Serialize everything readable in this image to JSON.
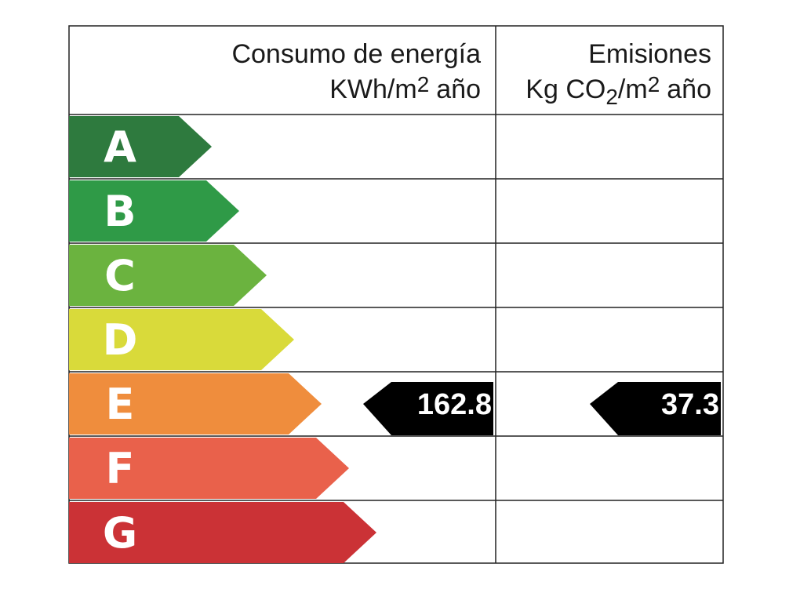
{
  "header": {
    "consumption": {
      "line1": "Consumo de energía",
      "line2": [
        "KWh/m",
        "2",
        "año"
      ]
    },
    "emissions": {
      "line1": "Emisiones",
      "line2": [
        "Kg CO",
        "2",
        "/m",
        "2",
        "año"
      ]
    }
  },
  "rows": [
    {
      "letter": "A",
      "color": "#2e7a3e"
    },
    {
      "letter": "B",
      "color": "#2f9a47"
    },
    {
      "letter": "C",
      "color": "#6bb33f"
    },
    {
      "letter": "D",
      "color": "#d9da3a"
    },
    {
      "letter": "E",
      "color": "#ef8d3d",
      "consumption": "162.8",
      "emissions": "37.3"
    },
    {
      "letter": "F",
      "color": "#e9614b"
    },
    {
      "letter": "G",
      "color": "#cb3236"
    }
  ]
}
